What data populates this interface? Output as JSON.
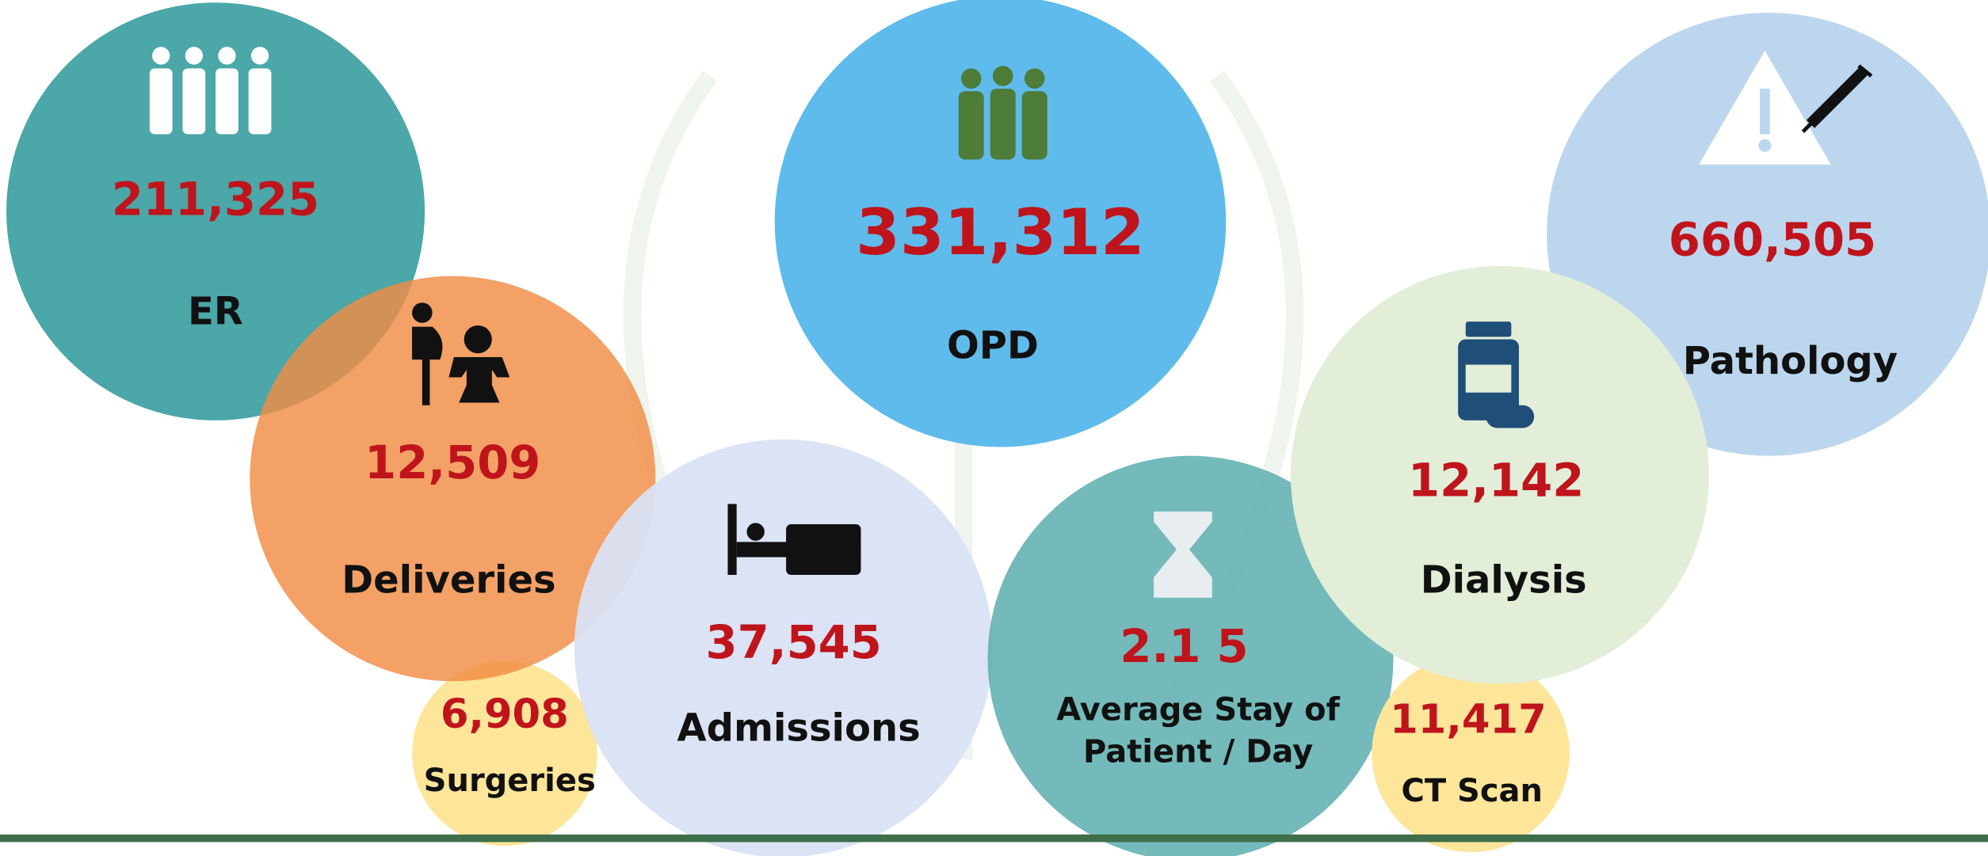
{
  "nodes": [
    {
      "value": "211,325",
      "label": "ER"
    },
    {
      "value": "12,509",
      "label": "Deliveries"
    },
    {
      "value": "331,312",
      "label": "OPD"
    },
    {
      "value": "660,505",
      "label": "Pathology"
    },
    {
      "value": "12,142",
      "label": "Dialysis"
    },
    {
      "value": "37,545",
      "label": "Admissions"
    },
    {
      "value": "2.1 5",
      "label": [
        "Average Stay of",
        "Patient / Day"
      ]
    },
    {
      "value": "6,908",
      "label": "Surgeries"
    },
    {
      "value": "11,417",
      "label": "CT Scan"
    }
  ]
}
